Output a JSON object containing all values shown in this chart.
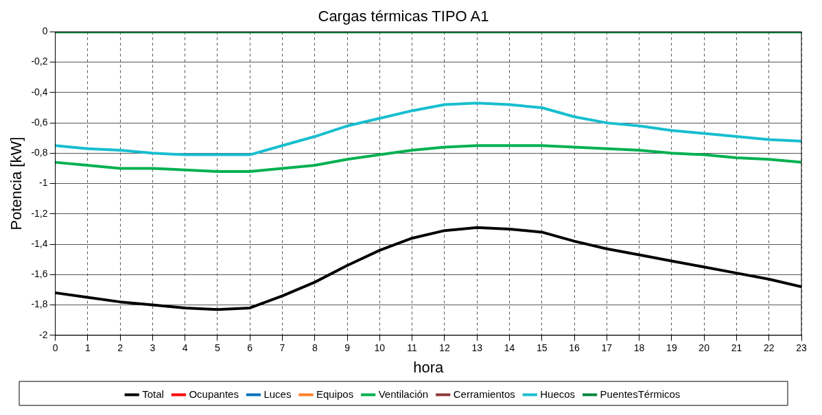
{
  "chart_data": {
    "type": "line",
    "title": "Cargas térmicas TIPO A1",
    "xlabel": "hora",
    "ylabel": "Potencia [kW]",
    "x": [
      0,
      1,
      2,
      3,
      4,
      5,
      6,
      7,
      8,
      9,
      10,
      11,
      12,
      13,
      14,
      15,
      16,
      17,
      18,
      19,
      20,
      21,
      22,
      23
    ],
    "xlim": [
      0,
      23
    ],
    "xticks": [
      0,
      1,
      2,
      3,
      4,
      5,
      6,
      7,
      8,
      9,
      10,
      11,
      12,
      13,
      14,
      15,
      16,
      17,
      18,
      19,
      20,
      21,
      22,
      23
    ],
    "ylim": [
      -2,
      0
    ],
    "yticks": [
      {
        "value": -2,
        "label": "-2"
      },
      {
        "value": -1.8,
        "label": "-1,8"
      },
      {
        "value": -1.6,
        "label": "-1,6"
      },
      {
        "value": -1.4,
        "label": "-1,4"
      },
      {
        "value": -1.2,
        "label": "-1,2"
      },
      {
        "value": -1,
        "label": "-1"
      },
      {
        "value": -0.8,
        "label": "-0,8"
      },
      {
        "value": -0.6,
        "label": "-0,6"
      },
      {
        "value": -0.4,
        "label": "-0,4"
      },
      {
        "value": -0.2,
        "label": "-0,2"
      },
      {
        "value": 0,
        "label": "0"
      }
    ],
    "grid": true,
    "legend": "bottom",
    "marker": "none",
    "line_style": "solid",
    "series": [
      {
        "name": "Total",
        "color": "#000000",
        "values": [
          -1.72,
          -1.75,
          -1.78,
          -1.8,
          -1.82,
          -1.83,
          -1.82,
          -1.74,
          -1.65,
          -1.54,
          -1.44,
          -1.36,
          -1.31,
          -1.29,
          -1.3,
          -1.32,
          -1.38,
          -1.43,
          -1.47,
          -1.51,
          -1.55,
          -1.59,
          -1.63,
          -1.68
        ]
      },
      {
        "name": "Ocupantes",
        "color": "#ff0000",
        "values": [
          null,
          null,
          null,
          null,
          null,
          null,
          null,
          null,
          null,
          null,
          null,
          null,
          null,
          null,
          null,
          null,
          null,
          null,
          null,
          null,
          null,
          null,
          null,
          null
        ]
      },
      {
        "name": "Luces",
        "color": "#0070c0",
        "values": [
          null,
          null,
          null,
          null,
          null,
          null,
          null,
          null,
          null,
          null,
          null,
          null,
          null,
          null,
          null,
          null,
          null,
          null,
          null,
          null,
          null,
          null,
          null,
          null
        ]
      },
      {
        "name": "Equipos",
        "color": "#ff7f27",
        "values": [
          null,
          null,
          null,
          null,
          null,
          null,
          null,
          null,
          null,
          null,
          null,
          null,
          null,
          null,
          null,
          null,
          null,
          null,
          null,
          null,
          null,
          null,
          null,
          null
        ]
      },
      {
        "name": "Ventilación",
        "color": "#00b050",
        "values": [
          -0.86,
          -0.88,
          -0.9,
          -0.9,
          -0.91,
          -0.92,
          -0.92,
          -0.9,
          -0.88,
          -0.84,
          -0.81,
          -0.78,
          -0.76,
          -0.75,
          -0.75,
          -0.75,
          -0.76,
          -0.77,
          -0.78,
          -0.8,
          -0.81,
          -0.83,
          -0.84,
          -0.86
        ]
      },
      {
        "name": "Cerramientos",
        "color": "#8b3a3a",
        "values": [
          null,
          null,
          null,
          null,
          null,
          null,
          null,
          null,
          null,
          null,
          null,
          null,
          null,
          null,
          null,
          null,
          null,
          null,
          null,
          null,
          null,
          null,
          null,
          null
        ]
      },
      {
        "name": "Huecos",
        "color": "#17becf",
        "values": [
          -0.75,
          -0.77,
          -0.78,
          -0.8,
          -0.81,
          -0.81,
          -0.81,
          -0.75,
          -0.69,
          -0.62,
          -0.57,
          -0.52,
          -0.48,
          -0.47,
          -0.48,
          -0.5,
          -0.56,
          -0.6,
          -0.62,
          -0.65,
          -0.67,
          -0.69,
          -0.71,
          -0.72
        ]
      },
      {
        "name": "PuentesTérmicos",
        "color": "#00873c",
        "values": [
          0,
          0,
          0,
          0,
          0,
          0,
          0,
          0,
          0,
          0,
          0,
          0,
          0,
          0,
          0,
          0,
          0,
          0,
          0,
          0,
          0,
          0,
          0,
          0
        ]
      }
    ]
  }
}
